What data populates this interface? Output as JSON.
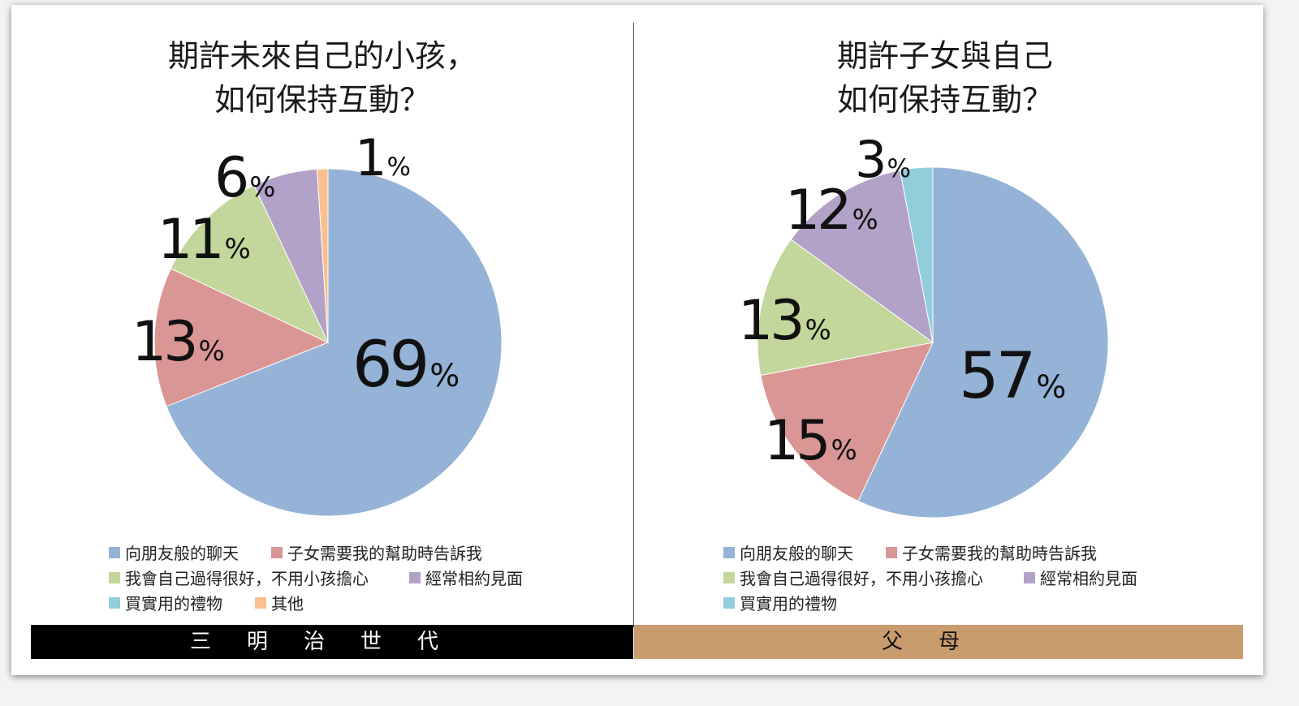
{
  "colors": {
    "series": [
      "#95b3d7",
      "#da9694",
      "#c3d69b",
      "#b3a2c7",
      "#92cddc",
      "#fabf8f"
    ]
  },
  "chart_data": [
    {
      "type": "pie",
      "title_lines": [
        "期許未來自己的小孩，",
        "如何保持互動？"
      ],
      "categories": [
        "向朋友般的聊天",
        "子女需要我的幫助時告訴我",
        "我會自己過得很好，不用小孩擔心",
        "經常相約見面",
        "其他"
      ],
      "values": [
        69,
        13,
        11,
        6,
        1
      ],
      "value_labels": [
        "69",
        "13",
        "11",
        "6",
        "1"
      ],
      "unit": "%",
      "legend": [
        "向朋友般的聊天",
        "子女需要我的幫助時告訴我",
        "我會自己過得很好，不用小孩擔心",
        "經常相約見面",
        "買實用的禮物",
        "其他"
      ],
      "footer": "三明治世代"
    },
    {
      "type": "pie",
      "title_lines": [
        "期許子女與自己",
        "如何保持互動？"
      ],
      "categories": [
        "向朋友般的聊天",
        "子女需要我的幫助時告訴我",
        "我會自己過得很好，不用小孩擔心",
        "經常相約見面",
        "買實用的禮物"
      ],
      "values": [
        57,
        15,
        13,
        12,
        3
      ],
      "value_labels": [
        "57",
        "15",
        "13",
        "12",
        "3"
      ],
      "unit": "%",
      "legend": [
        "向朋友般的聊天",
        "子女需要我的幫助時告訴我",
        "我會自己過得很好，不用小孩擔心",
        "經常相約見面",
        "買實用的禮物"
      ],
      "footer": "父母"
    }
  ]
}
